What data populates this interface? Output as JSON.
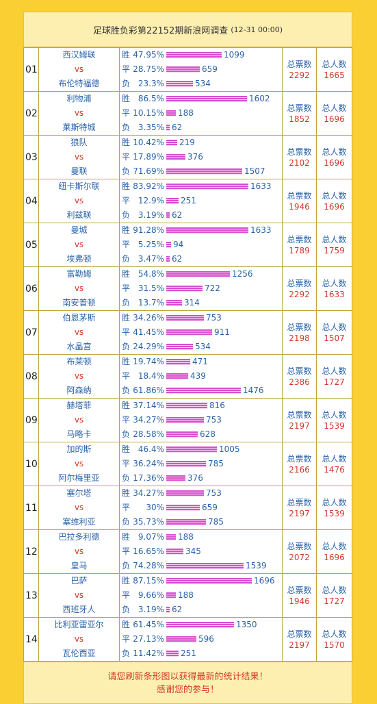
{
  "header": {
    "title": "足球胜负彩第22152期新浪网调查",
    "subtitle": "(12-31 00:00)"
  },
  "labels": {
    "win": "胜",
    "draw": "平",
    "lose": "负",
    "vs": "vs",
    "total_votes": "总票数",
    "total_people": "总人数"
  },
  "matches": [
    {
      "no": "01",
      "home": "西汉姆联",
      "away": "布伦特福德",
      "win_pct": "47.95%",
      "win_votes": 1099,
      "draw_pct": "28.75%",
      "draw_votes": 659,
      "lose_pct": "23.3%",
      "lose_votes": 534,
      "total_votes": 2292,
      "total_people": 1665
    },
    {
      "no": "02",
      "home": "利物浦",
      "away": "莱斯特城",
      "win_pct": "86.5%",
      "win_votes": 1602,
      "draw_pct": "10.15%",
      "draw_votes": 188,
      "lose_pct": "3.35%",
      "lose_votes": 62,
      "total_votes": 1852,
      "total_people": 1696
    },
    {
      "no": "03",
      "home": "狼队",
      "away": "曼联",
      "win_pct": "10.42%",
      "win_votes": 219,
      "draw_pct": "17.89%",
      "draw_votes": 376,
      "lose_pct": "71.69%",
      "lose_votes": 1507,
      "total_votes": 2102,
      "total_people": 1696
    },
    {
      "no": "04",
      "home": "纽卡斯尔联",
      "away": "利兹联",
      "win_pct": "83.92%",
      "win_votes": 1633,
      "draw_pct": "12.9%",
      "draw_votes": 251,
      "lose_pct": "3.19%",
      "lose_votes": 62,
      "total_votes": 1946,
      "total_people": 1696
    },
    {
      "no": "05",
      "home": "曼城",
      "away": "埃弗顿",
      "win_pct": "91.28%",
      "win_votes": 1633,
      "draw_pct": "5.25%",
      "draw_votes": 94,
      "lose_pct": "3.47%",
      "lose_votes": 62,
      "total_votes": 1789,
      "total_people": 1759
    },
    {
      "no": "06",
      "home": "富勒姆",
      "away": "南安普顿",
      "win_pct": "54.8%",
      "win_votes": 1256,
      "draw_pct": "31.5%",
      "draw_votes": 722,
      "lose_pct": "13.7%",
      "lose_votes": 314,
      "total_votes": 2292,
      "total_people": 1633
    },
    {
      "no": "07",
      "home": "伯恩茅斯",
      "away": "水晶宫",
      "win_pct": "34.26%",
      "win_votes": 753,
      "draw_pct": "41.45%",
      "draw_votes": 911,
      "lose_pct": "24.29%",
      "lose_votes": 534,
      "total_votes": 2198,
      "total_people": 1507
    },
    {
      "no": "08",
      "home": "布莱顿",
      "away": "阿森纳",
      "win_pct": "19.74%",
      "win_votes": 471,
      "draw_pct": "18.4%",
      "draw_votes": 439,
      "lose_pct": "61.86%",
      "lose_votes": 1476,
      "total_votes": 2386,
      "total_people": 1727
    },
    {
      "no": "09",
      "home": "赫塔菲",
      "away": "马略卡",
      "win_pct": "37.14%",
      "win_votes": 816,
      "draw_pct": "34.27%",
      "draw_votes": 753,
      "lose_pct": "28.58%",
      "lose_votes": 628,
      "total_votes": 2197,
      "total_people": 1539
    },
    {
      "no": "10",
      "home": "加的斯",
      "away": "阿尔梅里亚",
      "win_pct": "46.4%",
      "win_votes": 1005,
      "draw_pct": "36.24%",
      "draw_votes": 785,
      "lose_pct": "17.36%",
      "lose_votes": 376,
      "total_votes": 2166,
      "total_people": 1476
    },
    {
      "no": "11",
      "home": "塞尔塔",
      "away": "塞维利亚",
      "win_pct": "34.27%",
      "win_votes": 753,
      "draw_pct": "30%",
      "draw_votes": 659,
      "lose_pct": "35.73%",
      "lose_votes": 785,
      "total_votes": 2197,
      "total_people": 1539
    },
    {
      "no": "12",
      "home": "巴拉多利德",
      "away": "皇马",
      "win_pct": "9.07%",
      "win_votes": 188,
      "draw_pct": "16.65%",
      "draw_votes": 345,
      "lose_pct": "74.28%",
      "lose_votes": 1539,
      "total_votes": 2072,
      "total_people": 1696
    },
    {
      "no": "13",
      "home": "巴萨",
      "away": "西班牙人",
      "win_pct": "87.15%",
      "win_votes": 1696,
      "draw_pct": "9.66%",
      "draw_votes": 188,
      "lose_pct": "3.19%",
      "lose_votes": 62,
      "total_votes": 1946,
      "total_people": 1727
    },
    {
      "no": "14",
      "home": "比利亚雷亚尔",
      "away": "瓦伦西亚",
      "win_pct": "61.45%",
      "win_votes": 1350,
      "draw_pct": "27.13%",
      "draw_votes": 596,
      "lose_pct": "11.42%",
      "lose_votes": 251,
      "total_votes": 2197,
      "total_people": 1570
    }
  ],
  "footer": {
    "line1": "请您刷新条形图以获得最新的统计结果！",
    "line2": "感谢您的参与！"
  },
  "colors": {
    "background": "#f9cf33",
    "header_bg": "#fdefb0",
    "bar": "#d84fd0",
    "team_text": "#2a62a8",
    "accent_red": "#d23a2a"
  }
}
